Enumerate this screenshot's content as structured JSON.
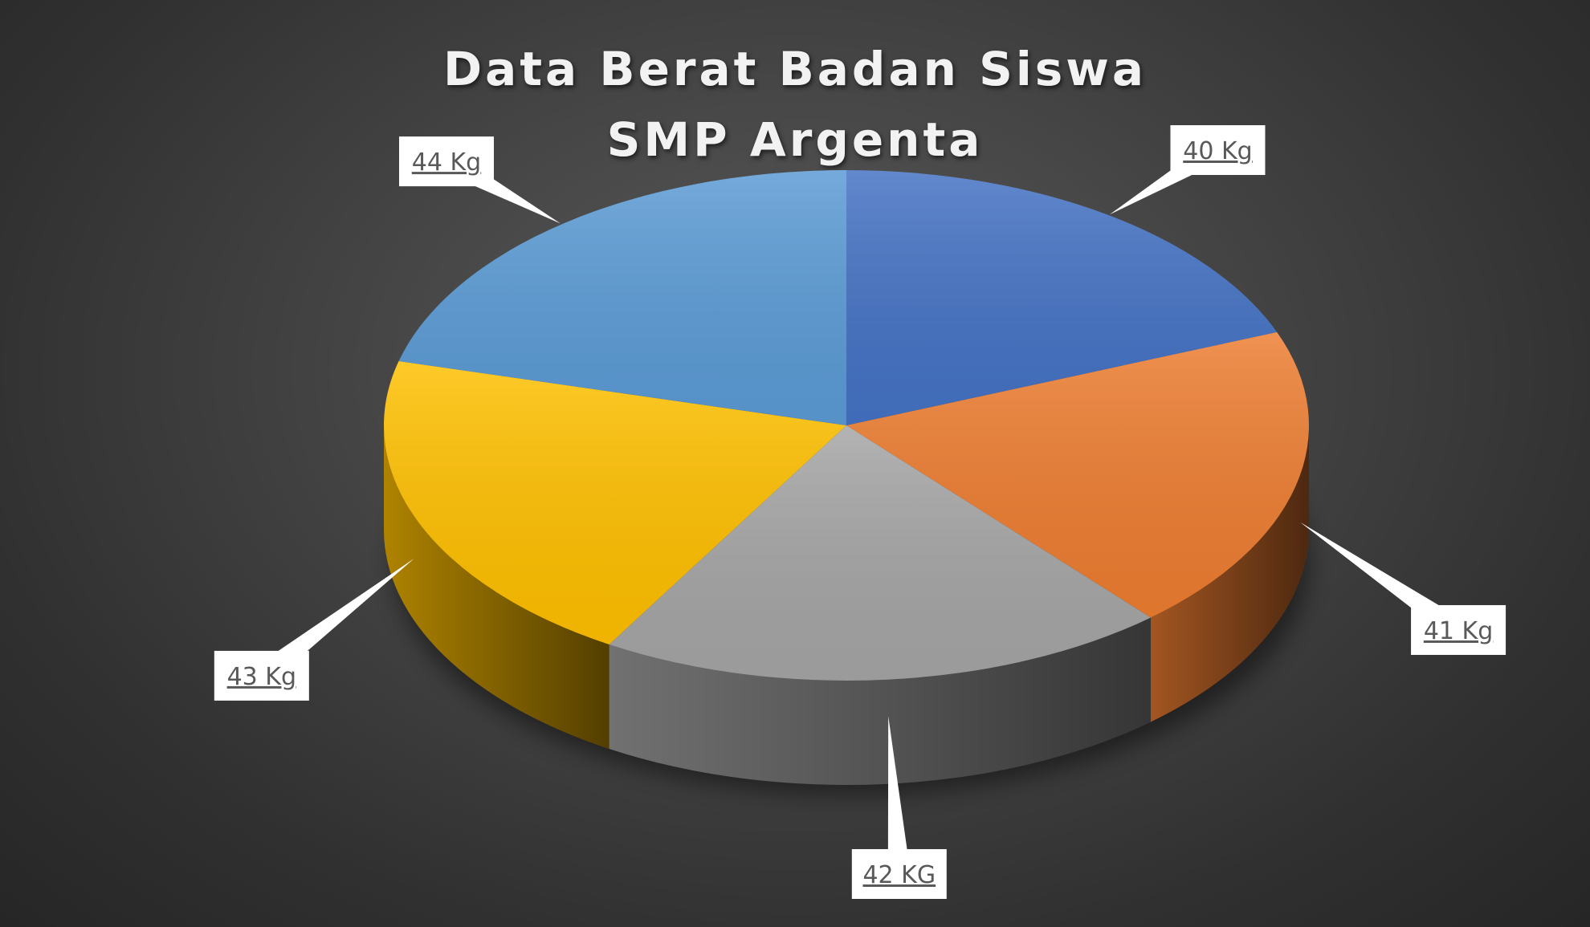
{
  "chart_data": {
    "type": "pie",
    "title": "Data Berat Badan Siswa SMP Argenta",
    "title_lines": [
      "Data Berat Badan Siswa",
      "SMP Argenta"
    ],
    "three_d": true,
    "labels": [
      "40 Kg",
      "41 Kg",
      "42 KG",
      "43 Kg",
      "44 Kg"
    ],
    "values": [
      40,
      41,
      42,
      43,
      44
    ],
    "colors": [
      "#4472C4",
      "#ED7D31",
      "#A5A5A5",
      "#FFC000",
      "#5B9BD5"
    ],
    "data_labels_style": "callout",
    "legend": "none",
    "background": "#404040"
  }
}
